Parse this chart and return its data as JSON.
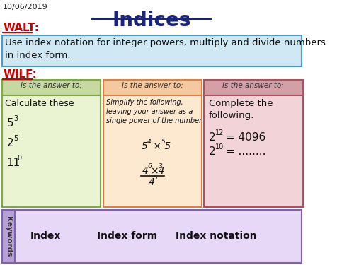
{
  "title": "Indices",
  "date": "10/06/2019",
  "walt_label": "WALT:",
  "walt_text": "Use index notation for integer powers, multiply and divide numbers\nin index form.",
  "wilf_label": "WILF:",
  "bg_color": "#ffffff",
  "title_color": "#1a237e",
  "walt_color": "#cc0000",
  "wilf_color": "#cc0000",
  "walt_box_bg": "#cfe8f3",
  "walt_box_border": "#4a9cc7",
  "col1_header_bg": "#c5d9a0",
  "col1_header_border": "#7dab3c",
  "col1_body_bg": "#eaf4d3",
  "col1_body_border": "#7dab3c",
  "col2_header_bg": "#f5c9a0",
  "col2_header_border": "#e08040",
  "col2_body_bg": "#fde8d0",
  "col2_body_border": "#e08040",
  "col3_header_bg": "#d4a0a8",
  "col3_header_border": "#b05060",
  "col3_body_bg": "#f2d4d8",
  "col3_body_border": "#b05060",
  "keywords_sidebar_bg": "#b8a0d8",
  "keywords_sidebar_border": "#8060b0",
  "keywords_body_bg": "#e8d8f8",
  "keywords_body_border": "#8060b0",
  "keywords_sidebar_text": "Keywords",
  "keywords": [
    "Index",
    "Index form",
    "Index notation"
  ],
  "col1_header": "Is the answer to:",
  "col2_header": "Is the answer to:",
  "col3_header": "Is the answer to:"
}
